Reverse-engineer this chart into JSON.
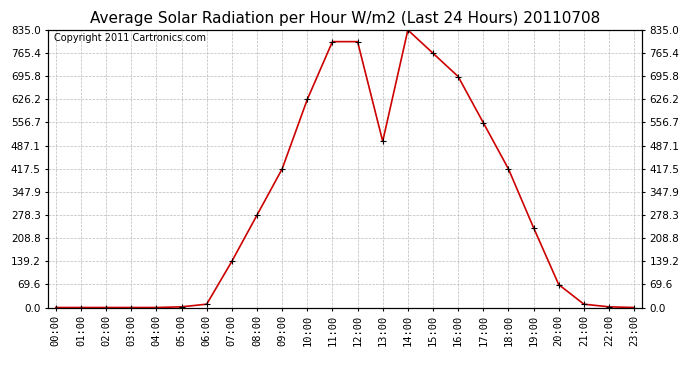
{
  "title": "Average Solar Radiation per Hour W/m2 (Last 24 Hours) 20110708",
  "copyright": "Copyright 2011 Cartronics.com",
  "hours": [
    "00:00",
    "01:00",
    "02:00",
    "03:00",
    "04:00",
    "05:00",
    "06:00",
    "07:00",
    "08:00",
    "09:00",
    "10:00",
    "11:00",
    "12:00",
    "13:00",
    "14:00",
    "15:00",
    "16:00",
    "17:00",
    "18:00",
    "19:00",
    "20:00",
    "21:00",
    "22:00",
    "23:00"
  ],
  "values": [
    0,
    0,
    0,
    0,
    0,
    2,
    10,
    139,
    278,
    417,
    626,
    800,
    800,
    500,
    835,
    765,
    695,
    556,
    417,
    240,
    69,
    10,
    2,
    0
  ],
  "line_color": "#cc0000",
  "marker": "+",
  "marker_color": "black",
  "marker_size": 4,
  "background_color": "#ffffff",
  "grid_color": "#bbbbbb",
  "ylim": [
    0,
    835
  ],
  "yticks": [
    0.0,
    69.6,
    139.2,
    208.8,
    278.3,
    347.9,
    417.5,
    487.1,
    556.7,
    626.2,
    695.8,
    765.4,
    835.0
  ],
  "title_fontsize": 11,
  "copyright_fontsize": 7,
  "tick_fontsize": 7.5,
  "border_color": "#000000"
}
